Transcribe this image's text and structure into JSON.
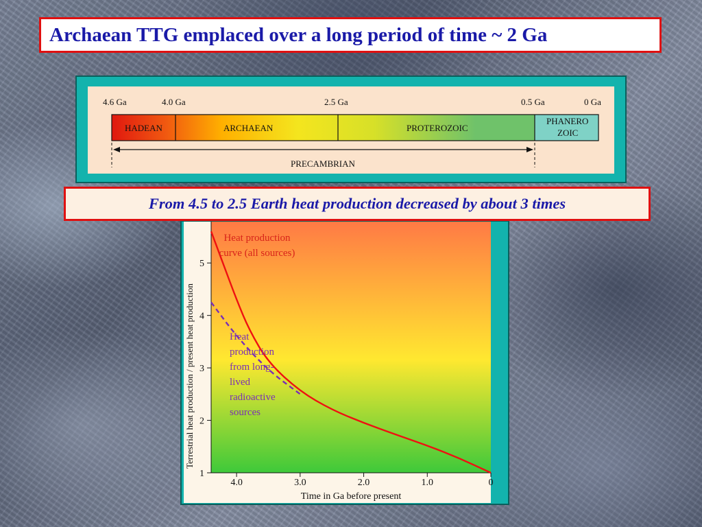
{
  "title": "Archaean TTG emplaced over a long period of time  ~  2 Ga",
  "note": "From 4.5 to 2.5 Earth heat production decreased by about 3 times",
  "timeline": {
    "ticks": [
      "4.6 Ga",
      "4.0 Ga",
      "2.5 Ga",
      "0.5 Ga",
      "0 Ga"
    ],
    "eons": [
      {
        "label": "HADEAN"
      },
      {
        "label": "ARCHAEAN"
      },
      {
        "label": "PROTEROZOIC"
      },
      {
        "label_line1": "PHANERO",
        "label_line2": "ZOIC"
      }
    ],
    "span_label": "PRECAMBRIAN"
  },
  "chart_data": {
    "type": "line",
    "xlabel": "Time in Ga before present",
    "ylabel": "Terrestrial heat production / present heat production",
    "xlim": [
      4.4,
      0
    ],
    "ylim": [
      1,
      5.5
    ],
    "xticks": [
      "4.0",
      "3.0",
      "2.0",
      "1.0",
      "0"
    ],
    "xtick_values": [
      4.0,
      3.0,
      2.0,
      1.0,
      0
    ],
    "yticks": [
      "1",
      "2",
      "3",
      "4",
      "5"
    ],
    "ytick_values": [
      1,
      2,
      3,
      4,
      5
    ],
    "series": [
      {
        "name": "Heat production curve (all sources)",
        "style": "solid",
        "color": "#ee1111",
        "x": [
          4.4,
          4.2,
          4.0,
          3.8,
          3.5,
          3.0,
          2.5,
          2.0,
          1.5,
          1.0,
          0.5,
          0
        ],
        "y": [
          5.6,
          4.95,
          4.3,
          3.72,
          3.1,
          2.55,
          2.2,
          1.95,
          1.73,
          1.52,
          1.28,
          1.0
        ]
      },
      {
        "name": "Heat production from long-lived radioactive sources",
        "style": "dashed",
        "color": "#7a2fb5",
        "x": [
          4.4,
          4.0,
          3.5,
          3.0
        ],
        "y": [
          4.25,
          3.6,
          2.95,
          2.5
        ]
      }
    ],
    "annotations": [
      {
        "lines": [
          "Heat production",
          "curve (all sources)"
        ],
        "color": "#d8231a"
      },
      {
        "lines": [
          "Heat",
          "production",
          "from long-",
          "lived",
          "radioactive",
          "sources"
        ],
        "color": "#7a2fb5"
      }
    ],
    "background_gradient": [
      "#ff7a45",
      "#ffe830",
      "#3ec93a"
    ]
  }
}
